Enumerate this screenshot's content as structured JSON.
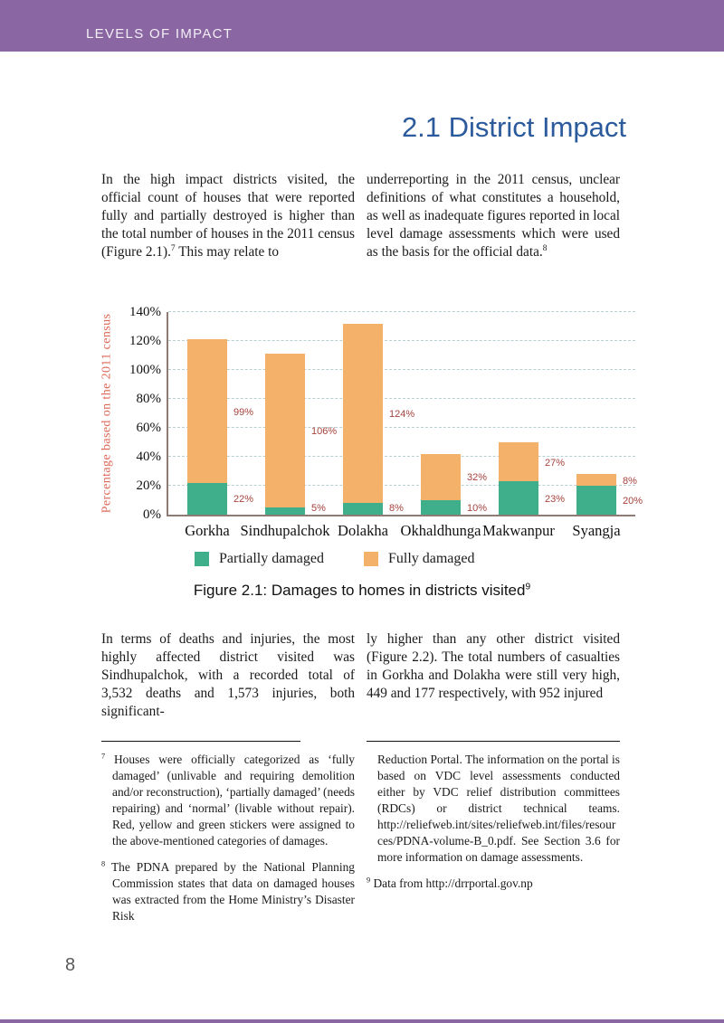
{
  "header": {
    "title": "LEVELS OF IMPACT"
  },
  "section": {
    "title": "2.1 District Impact"
  },
  "intro": {
    "left": {
      "text": "In the high impact districts visited, the official count of houses that were reported fully and partially destroyed is higher than the total number of houses in the 2011 census (Figure 2.1).",
      "sup": "7",
      "after": " This may relate to"
    },
    "right": {
      "text": "underreporting in the 2011 census, unclear definitions of what constitutes a household, as well as inadequate figures reported in local level damage assessments which were used as the basis for the official data.",
      "sup": "8"
    }
  },
  "figure": {
    "caption": "Figure 2.1: Damages to homes in districts visited",
    "caption_sup": "9"
  },
  "para2": {
    "left": "In terms of deaths and injuries, the most highly affected district visited was Sindhupalchok, with a recorded total of 3,532 deaths and 1,573 injuries, both significant-",
    "right": "ly higher than any other district visited (Figure 2.2). The total numbers of casualties in Gorkha and Dolakha were still very high, 449 and 177 respectively, with 952 injured"
  },
  "footnotes": {
    "fn7": {
      "sup": "7",
      "text": "Houses were officially categorized as ‘fully damaged’ (unlivable and requiring demolition and/or reconstruction), ‘partially damaged’ (needs repairing) and ‘normal’ (livable without repair). Red, yellow and green stickers were assigned to the above-mentioned categories of damages."
    },
    "fn8": {
      "sup": "8",
      "text": "The PDNA prepared by the National Planning Commission states that data on damaged houses was extracted from the Home Ministry’s Disaster Risk"
    },
    "fn8_continued": "Reduction Portal. The information on the portal is based on VDC level assessments conducted either by VDC relief distribution committees (RDCs) or district technical teams. http://reliefweb.int/sites/reliefweb.int/files/resources/PDNA-volume-B_0.pdf. See Section 3.6 for more information on damage assessments.",
    "fn9": {
      "sup": "9",
      "text": "Data from http://drrportal.gov.np"
    }
  },
  "page_number": "8",
  "colors": {
    "header_purple": "#8a67a3",
    "title_blue": "#2b5a9d",
    "partially_damaged_green": "#3fae8b",
    "fully_damaged_orange": "#f4b169",
    "value_label_red": "#a5423d",
    "axis_label_salmon": "#dd6757",
    "gridline": "#b7cfd1",
    "axis_line": "#8e7c74"
  },
  "chart_data": {
    "type": "bar",
    "stacked": true,
    "title": "",
    "xlabel": "",
    "ylabel": "Percentage based on the 2011 census",
    "categories": [
      "Gorkha",
      "Sindhupalchok",
      "Dolakha",
      "Okhaldhunga",
      "Makwanpur",
      "Syangja"
    ],
    "series": [
      {
        "name": "Partially damaged",
        "color": "#3fae8b",
        "values": [
          22,
          5,
          8,
          10,
          23,
          20
        ]
      },
      {
        "name": "Fully damaged",
        "color": "#f4b169",
        "values": [
          99,
          106,
          124,
          32,
          27,
          8
        ]
      }
    ],
    "totals": [
      121,
      111,
      132,
      42,
      50,
      28
    ],
    "ylim": [
      0,
      140
    ],
    "ytick_step": 20,
    "ytick_suffix": "%",
    "grid": "horizontal-dashed",
    "legend_position": "bottom-left",
    "value_labels": "right-of-bar-segment-midpoint"
  }
}
